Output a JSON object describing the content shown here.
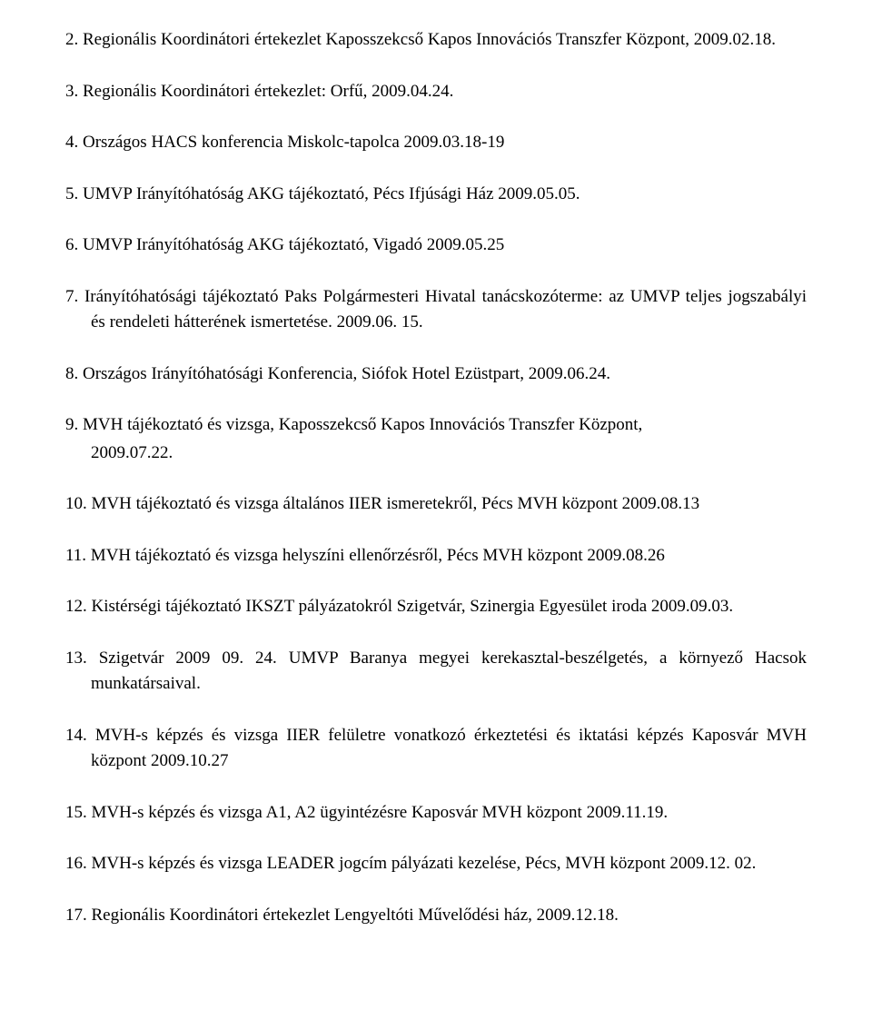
{
  "items": [
    {
      "text": "Regionális Koordinátori értekezlet Kaposszekcső Kapos Innovációs Transzfer Központ, 2009.02.18."
    },
    {
      "text": "Regionális Koordinátori értekezlet: Orfű, 2009.04.24."
    },
    {
      "text": "Országos HACS konferencia Miskolc-tapolca 2009.03.18-19"
    },
    {
      "text": "UMVP Irányítóhatóság AKG tájékoztató, Pécs Ifjúsági Ház 2009.05.05."
    },
    {
      "text": "UMVP Irányítóhatóság AKG tájékoztató, Vigadó 2009.05.25"
    },
    {
      "text": "Irányítóhatósági tájékoztató Paks Polgármesteri Hivatal tanácskozóterme: az UMVP teljes jogszabályi és rendeleti hátterének ismertetése. 2009.06. 15."
    },
    {
      "text": "Országos Irányítóhatósági Konferencia, Siófok Hotel Ezüstpart, 2009.06.24."
    },
    {
      "text": "MVH tájékoztató  és vizsga, Kaposszekcső Kapos Innovációs Transzfer Központ,",
      "sub": "2009.07.22."
    },
    {
      "text": "MVH tájékoztató  és vizsga általános IIER ismeretekről, Pécs MVH központ 2009.08.13"
    },
    {
      "text": "MVH tájékoztató  és vizsga helyszíni ellenőrzésről, Pécs MVH központ 2009.08.26"
    },
    {
      "text": "Kistérségi tájékoztató IKSZT pályázatokról Szigetvár, Szinergia Egyesület iroda 2009.09.03."
    },
    {
      "text": "Szigetvár 2009 09. 24.  UMVP Baranya megyei kerekasztal-beszélgetés, a környező Hacsok munkatársaival."
    },
    {
      "text": "MVH-s képzés és vizsga IIER felületre vonatkozó érkeztetési és iktatási képzés Kaposvár MVH központ 2009.10.27"
    },
    {
      "text": "MVH-s képzés és vizsga A1, A2 ügyintézésre Kaposvár MVH központ 2009.11.19."
    },
    {
      "text": "MVH-s képzés és vizsga LEADER jogcím pályázati kezelése, Pécs,  MVH központ 2009.12. 02."
    },
    {
      "text": "Regionális Koordinátori értekezlet Lengyeltóti Művelődési ház, 2009.12.18."
    }
  ]
}
